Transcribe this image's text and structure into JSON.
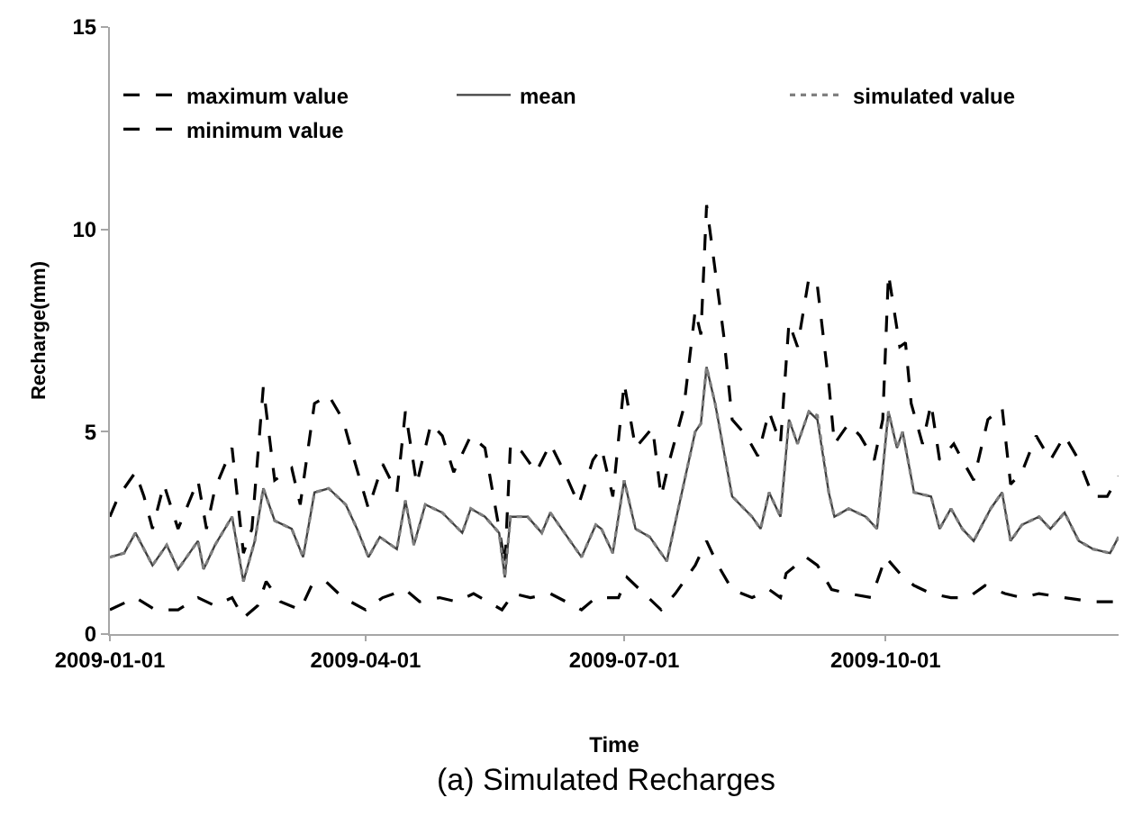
{
  "chart_data": {
    "type": "line",
    "title": "(a) Simulated Recharges",
    "xlabel": "Time",
    "ylabel": "Recharge(mm)",
    "xlim": [
      "2009-01-01",
      "2009-12-22"
    ],
    "xticks": [
      "2009-01-01",
      "2009-04-01",
      "2009-07-01",
      "2009-10-01"
    ],
    "ylim": [
      0,
      15
    ],
    "yticks": [
      0,
      5,
      10,
      15
    ],
    "grid": false,
    "legend": "top",
    "marker": "none",
    "series": [
      {
        "name": "maximum value",
        "color": "#000000",
        "line_style": "dashed",
        "x": [
          "2009-01-01",
          "2009-01-04",
          "2009-01-10",
          "2009-01-13",
          "2009-01-16",
          "2009-01-20",
          "2009-01-25",
          "2009-02-01",
          "2009-02-04",
          "2009-02-07",
          "2009-02-13",
          "2009-02-17",
          "2009-02-20",
          "2009-02-24",
          "2009-02-28",
          "2009-03-06",
          "2009-03-09",
          "2009-03-14",
          "2009-03-19",
          "2009-03-24",
          "2009-03-28",
          "2009-04-02",
          "2009-04-07",
          "2009-04-12",
          "2009-04-15",
          "2009-04-19",
          "2009-04-24",
          "2009-04-28",
          "2009-05-02",
          "2009-05-08",
          "2009-05-13",
          "2009-05-18",
          "2009-05-20",
          "2009-05-22",
          "2009-05-26",
          "2009-05-31",
          "2009-06-05",
          "2009-06-10",
          "2009-06-15",
          "2009-06-20",
          "2009-06-23",
          "2009-06-27",
          "2009-07-01",
          "2009-07-05",
          "2009-07-11",
          "2009-07-14",
          "2009-07-17",
          "2009-07-22",
          "2009-07-26",
          "2009-07-28",
          "2009-07-30",
          "2009-08-02",
          "2009-08-05",
          "2009-08-08",
          "2009-08-13",
          "2009-08-17",
          "2009-08-21",
          "2009-08-25",
          "2009-08-28",
          "2009-08-31",
          "2009-09-04",
          "2009-09-07",
          "2009-09-11",
          "2009-09-13",
          "2009-09-18",
          "2009-09-22",
          "2009-09-27",
          "2009-09-30",
          "2009-10-02",
          "2009-10-06",
          "2009-10-08",
          "2009-10-10",
          "2009-10-14",
          "2009-10-17",
          "2009-10-20",
          "2009-10-25",
          "2009-10-28",
          "2009-11-01",
          "2009-11-06",
          "2009-11-11",
          "2009-11-14",
          "2009-11-18",
          "2009-11-23",
          "2009-11-28",
          "2009-12-03",
          "2009-12-08",
          "2009-12-13",
          "2009-12-18",
          "2009-12-22"
        ],
        "values": [
          2.9,
          3.4,
          4.0,
          3.4,
          2.6,
          3.7,
          2.6,
          3.8,
          2.6,
          3.6,
          4.6,
          2.0,
          2.6,
          6.1,
          3.8,
          4.1,
          3.2,
          5.7,
          5.9,
          5.3,
          4.3,
          3.1,
          4.2,
          3.5,
          5.5,
          3.7,
          5.2,
          4.9,
          4.0,
          4.9,
          4.6,
          2.6,
          1.7,
          4.7,
          4.5,
          4.0,
          4.7,
          4.0,
          3.2,
          4.3,
          4.6,
          3.4,
          6.2,
          4.6,
          5.1,
          3.4,
          4.3,
          5.6,
          8.0,
          7.4,
          10.6,
          9.0,
          7.4,
          5.3,
          4.9,
          4.4,
          5.5,
          4.7,
          7.7,
          7.1,
          8.8,
          8.6,
          6.2,
          4.7,
          5.2,
          4.9,
          4.3,
          5.3,
          8.9,
          7.1,
          7.2,
          5.7,
          4.7,
          5.7,
          4.3,
          4.7,
          4.3,
          3.8,
          5.3,
          5.6,
          3.7,
          4.0,
          4.9,
          4.3,
          4.9,
          4.3,
          3.4,
          3.4,
          3.9
        ]
      },
      {
        "name": "mean",
        "color": "#404040",
        "line_style": "solid",
        "x": [
          "2009-01-01",
          "2009-01-06",
          "2009-01-10",
          "2009-01-16",
          "2009-01-21",
          "2009-01-25",
          "2009-02-01",
          "2009-02-03",
          "2009-02-07",
          "2009-02-13",
          "2009-02-17",
          "2009-02-21",
          "2009-02-24",
          "2009-02-28",
          "2009-03-06",
          "2009-03-10",
          "2009-03-14",
          "2009-03-19",
          "2009-03-25",
          "2009-03-29",
          "2009-04-02",
          "2009-04-06",
          "2009-04-12",
          "2009-04-15",
          "2009-04-18",
          "2009-04-22",
          "2009-04-28",
          "2009-05-05",
          "2009-05-08",
          "2009-05-13",
          "2009-05-18",
          "2009-05-20",
          "2009-05-22",
          "2009-05-28",
          "2009-06-02",
          "2009-06-05",
          "2009-06-10",
          "2009-06-16",
          "2009-06-21",
          "2009-06-23",
          "2009-06-27",
          "2009-07-01",
          "2009-07-05",
          "2009-07-10",
          "2009-07-16",
          "2009-07-21",
          "2009-07-26",
          "2009-07-28",
          "2009-07-30",
          "2009-08-02",
          "2009-08-08",
          "2009-08-15",
          "2009-08-18",
          "2009-08-21",
          "2009-08-25",
          "2009-08-28",
          "2009-08-31",
          "2009-09-04",
          "2009-09-07",
          "2009-09-11",
          "2009-09-13",
          "2009-09-18",
          "2009-09-24",
          "2009-09-28",
          "2009-10-02",
          "2009-10-05",
          "2009-10-07",
          "2009-10-11",
          "2009-10-17",
          "2009-10-20",
          "2009-10-24",
          "2009-10-28",
          "2009-11-01",
          "2009-11-07",
          "2009-11-11",
          "2009-11-14",
          "2009-11-18",
          "2009-11-24",
          "2009-11-28",
          "2009-12-03",
          "2009-12-08",
          "2009-12-13",
          "2009-12-19",
          "2009-12-22"
        ],
        "values": [
          1.9,
          2.0,
          2.5,
          1.7,
          2.2,
          1.6,
          2.3,
          1.6,
          2.2,
          2.9,
          1.3,
          2.3,
          3.6,
          2.8,
          2.6,
          1.9,
          3.5,
          3.6,
          3.2,
          2.6,
          1.9,
          2.4,
          2.1,
          3.3,
          2.2,
          3.2,
          3.0,
          2.5,
          3.1,
          2.9,
          2.5,
          1.4,
          2.9,
          2.9,
          2.5,
          3.0,
          2.5,
          1.9,
          2.7,
          2.6,
          2.0,
          3.8,
          2.6,
          2.4,
          1.8,
          3.4,
          5.0,
          5.2,
          6.6,
          5.7,
          3.4,
          2.9,
          2.6,
          3.5,
          2.9,
          5.3,
          4.7,
          5.5,
          5.3,
          3.5,
          2.9,
          3.1,
          2.9,
          2.6,
          5.5,
          4.6,
          5.0,
          3.5,
          3.4,
          2.6,
          3.1,
          2.6,
          2.3,
          3.1,
          3.5,
          2.3,
          2.7,
          2.9,
          2.6,
          3.0,
          2.3,
          2.1,
          2.0,
          2.4
        ]
      },
      {
        "name": "simulated value",
        "color": "#808080",
        "line_style": "dotted",
        "x": [
          "2009-01-01",
          "2009-01-06",
          "2009-01-10",
          "2009-01-16",
          "2009-01-21",
          "2009-01-25",
          "2009-02-01",
          "2009-02-03",
          "2009-02-07",
          "2009-02-13",
          "2009-02-17",
          "2009-02-21",
          "2009-02-24",
          "2009-02-28",
          "2009-03-06",
          "2009-03-10",
          "2009-03-14",
          "2009-03-19",
          "2009-03-25",
          "2009-03-29",
          "2009-04-02",
          "2009-04-06",
          "2009-04-12",
          "2009-04-15",
          "2009-04-18",
          "2009-04-22",
          "2009-04-28",
          "2009-05-05",
          "2009-05-08",
          "2009-05-13",
          "2009-05-18",
          "2009-05-20",
          "2009-05-22",
          "2009-05-28",
          "2009-06-02",
          "2009-06-05",
          "2009-06-10",
          "2009-06-16",
          "2009-06-21",
          "2009-06-23",
          "2009-06-27",
          "2009-07-01",
          "2009-07-05",
          "2009-07-10",
          "2009-07-16",
          "2009-07-21",
          "2009-07-26",
          "2009-07-28",
          "2009-07-30",
          "2009-08-02",
          "2009-08-08",
          "2009-08-15",
          "2009-08-18",
          "2009-08-21",
          "2009-08-25",
          "2009-08-28",
          "2009-08-31",
          "2009-09-04",
          "2009-09-07",
          "2009-09-11",
          "2009-09-13",
          "2009-09-18",
          "2009-09-24",
          "2009-09-28",
          "2009-10-02",
          "2009-10-05",
          "2009-10-07",
          "2009-10-11",
          "2009-10-17",
          "2009-10-20",
          "2009-10-24",
          "2009-10-28",
          "2009-11-01",
          "2009-11-07",
          "2009-11-11",
          "2009-11-14",
          "2009-11-18",
          "2009-11-24",
          "2009-11-28",
          "2009-12-03",
          "2009-12-08",
          "2009-12-13",
          "2009-12-19",
          "2009-12-22"
        ],
        "values": [
          1.9,
          2.0,
          2.5,
          1.7,
          2.2,
          1.6,
          2.3,
          1.6,
          2.2,
          2.9,
          1.3,
          2.3,
          3.6,
          2.8,
          2.6,
          1.9,
          3.5,
          3.6,
          3.2,
          2.6,
          1.9,
          2.4,
          2.1,
          3.3,
          2.2,
          3.2,
          3.0,
          2.5,
          3.1,
          2.9,
          2.5,
          1.4,
          2.9,
          2.9,
          2.5,
          3.0,
          2.5,
          1.9,
          2.7,
          2.6,
          2.0,
          3.8,
          2.6,
          2.4,
          1.8,
          3.4,
          5.0,
          5.2,
          6.6,
          5.7,
          3.4,
          2.9,
          2.6,
          3.5,
          2.9,
          5.3,
          4.7,
          5.5,
          5.4,
          3.5,
          2.9,
          3.1,
          2.9,
          2.6,
          5.5,
          4.6,
          5.0,
          3.5,
          3.4,
          2.6,
          3.1,
          2.6,
          2.3,
          3.1,
          3.5,
          2.3,
          2.7,
          2.9,
          2.6,
          3.0,
          2.3,
          2.1,
          2.0,
          2.4
        ]
      },
      {
        "name": "minimum value",
        "color": "#000000",
        "line_style": "dashed",
        "x": [
          "2009-01-01",
          "2009-01-10",
          "2009-01-17",
          "2009-01-25",
          "2009-02-01",
          "2009-02-07",
          "2009-02-13",
          "2009-02-17",
          "2009-02-22",
          "2009-02-25",
          "2009-03-02",
          "2009-03-09",
          "2009-03-13",
          "2009-03-18",
          "2009-03-24",
          "2009-04-01",
          "2009-04-07",
          "2009-04-15",
          "2009-04-20",
          "2009-04-27",
          "2009-05-03",
          "2009-05-09",
          "2009-05-19",
          "2009-05-23",
          "2009-05-29",
          "2009-06-05",
          "2009-06-16",
          "2009-06-21",
          "2009-06-29",
          "2009-07-02",
          "2009-07-08",
          "2009-07-14",
          "2009-07-19",
          "2009-07-26",
          "2009-07-30",
          "2009-08-03",
          "2009-08-08",
          "2009-08-15",
          "2009-08-21",
          "2009-08-25",
          "2009-08-27",
          "2009-09-03",
          "2009-09-07",
          "2009-09-12",
          "2009-09-18",
          "2009-09-26",
          "2009-10-01",
          "2009-10-06",
          "2009-10-11",
          "2009-10-17",
          "2009-10-24",
          "2009-10-30",
          "2009-11-05",
          "2009-11-12",
          "2009-11-18",
          "2009-11-24",
          "2009-12-03",
          "2009-12-13",
          "2009-12-22"
        ],
        "values": [
          0.6,
          0.9,
          0.6,
          0.6,
          0.9,
          0.7,
          0.9,
          0.4,
          0.7,
          1.3,
          0.8,
          0.6,
          1.2,
          1.3,
          0.9,
          0.6,
          0.9,
          1.1,
          0.8,
          0.9,
          0.8,
          1.0,
          0.6,
          1.0,
          0.9,
          1.0,
          0.6,
          0.9,
          0.9,
          1.4,
          1.0,
          0.6,
          1.0,
          1.7,
          2.3,
          1.7,
          1.1,
          0.9,
          1.1,
          0.9,
          1.5,
          1.9,
          1.7,
          1.1,
          1.0,
          0.9,
          1.9,
          1.5,
          1.2,
          1.0,
          0.9,
          0.9,
          1.2,
          1.0,
          0.9,
          1.0,
          0.9,
          0.8,
          0.8
        ]
      }
    ]
  }
}
